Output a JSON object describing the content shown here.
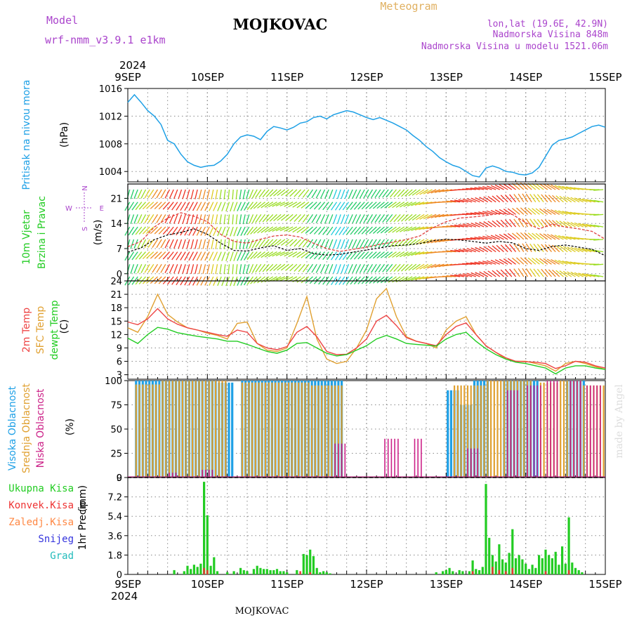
{
  "header": {
    "model_label": "Model",
    "model_name": "wrf-nmm_v3.9.1 e1km",
    "title": "MOJKOVAC",
    "meteogram_label": "Meteogram",
    "lonlat": "lon,lat (19.6E, 42.9N)",
    "altitude": "Nadmorska Visina 848m",
    "model_altitude": "Nadmorska Visina u modelu 1521.06m",
    "credit": "made by Angel",
    "footer": "MOJKOVAC"
  },
  "time_axis": {
    "year": "2024",
    "dates": [
      "9SEP",
      "10SEP",
      "11SEP",
      "12SEP",
      "13SEP",
      "14SEP",
      "15SEP"
    ],
    "range_hours": [
      0,
      144
    ]
  },
  "colors": {
    "pressure": "#1ea0e6",
    "wind_label": "#22cc22",
    "wind_speed": "#000000",
    "wind_gust": "#e04040",
    "temp_2m": "#ee4444",
    "temp_sfc": "#e0a030",
    "dewpoint": "#22cc22",
    "cloud_high": "#1ea0e6",
    "cloud_mid": "#e0a030",
    "cloud_low": "#cc2288",
    "precip": "#22cc22",
    "convective": "#ee3333",
    "freezing": "#ff8844",
    "snow": "#3333dd",
    "hail": "#22bbbb",
    "compass": "#aa44cc",
    "grid": "#888888"
  },
  "chart_data": [
    {
      "type": "line",
      "panel": "pressure",
      "ylabel": "Pritisak na nivou mora",
      "unit": "(hPa)",
      "ylim": [
        1002.5,
        1016
      ],
      "yticks": [
        1004,
        1008,
        1012,
        1016
      ],
      "x_hours": [
        0,
        2,
        4,
        6,
        8,
        10,
        12,
        14,
        16,
        18,
        20,
        22,
        24,
        26,
        28,
        30,
        32,
        34,
        36,
        38,
        40,
        42,
        44,
        46,
        48,
        50,
        52,
        54,
        56,
        58,
        60,
        62,
        64,
        66,
        68,
        70,
        72,
        74,
        76,
        78,
        80,
        82,
        84,
        86,
        88,
        90,
        92,
        94,
        96,
        98,
        100,
        102,
        104,
        106,
        108,
        110,
        112,
        114,
        116,
        118,
        120,
        122,
        124,
        126,
        128,
        130,
        132,
        134,
        136,
        138,
        140,
        142,
        144
      ],
      "values": [
        1014.0,
        1015.1,
        1014.0,
        1012.8,
        1012.0,
        1010.8,
        1008.5,
        1008.0,
        1006.5,
        1005.4,
        1004.9,
        1004.6,
        1004.8,
        1004.9,
        1005.5,
        1006.5,
        1008.0,
        1009.0,
        1009.3,
        1009.1,
        1008.6,
        1009.8,
        1010.5,
        1010.3,
        1010.0,
        1010.4,
        1011.0,
        1011.2,
        1011.8,
        1012.0,
        1011.6,
        1012.2,
        1012.5,
        1012.8,
        1012.6,
        1012.2,
        1011.8,
        1011.5,
        1011.8,
        1011.4,
        1011.0,
        1010.5,
        1010.0,
        1009.2,
        1008.5,
        1007.6,
        1006.9,
        1006.0,
        1005.4,
        1004.9,
        1004.6,
        1004.0,
        1003.4,
        1003.2,
        1004.5,
        1004.8,
        1004.5,
        1004.0,
        1003.9,
        1003.6,
        1003.5,
        1003.8,
        1004.6,
        1006.2,
        1007.8,
        1008.5,
        1008.7,
        1009.0,
        1009.5,
        1010.0,
        1010.5,
        1010.7,
        1010.4
      ]
    },
    {
      "type": "line",
      "panel": "wind",
      "ylabel": "10m Vjetar Brzina i Pravac",
      "unit": "(m/s)",
      "ylim": [
        -2,
        25
      ],
      "yticks": [
        0,
        7,
        14,
        21
      ],
      "compass": {
        "n": "N",
        "s": "S",
        "e": "E",
        "w": "W"
      },
      "x_hours": [
        0,
        4,
        8,
        12,
        16,
        20,
        24,
        28,
        32,
        36,
        40,
        44,
        48,
        52,
        56,
        60,
        64,
        68,
        72,
        76,
        80,
        84,
        88,
        92,
        96,
        100,
        104,
        108,
        112,
        116,
        120,
        124,
        128,
        132,
        136,
        140,
        144
      ],
      "series": [
        {
          "name": "speed",
          "values": [
            6.0,
            7.2,
            9.5,
            10.8,
            11.5,
            12.5,
            11.0,
            8.5,
            6.5,
            6.3,
            7.2,
            7.8,
            6.5,
            7.0,
            5.6,
            5.2,
            5.4,
            6.0,
            6.6,
            7.2,
            7.8,
            8.0,
            8.4,
            9.2,
            9.6,
            9.4,
            9.0,
            8.5,
            9.0,
            8.6,
            7.0,
            6.5,
            7.6,
            8.0,
            7.4,
            6.8,
            5.0
          ]
        },
        {
          "name": "gust",
          "values": [
            7.5,
            9.0,
            13.0,
            15.5,
            17.0,
            16.0,
            14.5,
            11.0,
            9.0,
            8.5,
            9.6,
            10.5,
            10.8,
            10.2,
            8.5,
            7.0,
            6.2,
            6.8,
            7.4,
            8.2,
            8.8,
            9.5,
            10.5,
            12.8,
            14.5,
            15.5,
            15.8,
            16.2,
            16.8,
            16.5,
            14.2,
            12.5,
            13.8,
            13.0,
            12.5,
            11.8,
            9.6
          ]
        }
      ],
      "direction_deg": [
        200,
        210,
        220,
        215,
        205,
        200,
        200,
        195,
        190,
        200,
        220,
        230,
        240,
        230,
        220,
        210,
        205,
        210,
        215,
        220,
        225,
        230,
        240,
        250,
        260,
        270,
        280,
        290,
        300,
        310,
        320,
        315,
        310,
        300,
        290,
        280,
        270
      ],
      "speed_color_scale": [
        "#9933cc",
        "#1e90ff",
        "#22ccdd",
        "#22cc66",
        "#99dd22",
        "#ddcc22",
        "#ee8822",
        "#ee3322"
      ]
    },
    {
      "type": "line",
      "panel": "temperature",
      "ylabel_lines": [
        "2m Temp",
        "SFC Temp",
        "dewpt Temp"
      ],
      "unit": "(C)",
      "ylim": [
        2,
        24
      ],
      "yticks": [
        3,
        6,
        9,
        12,
        15,
        18,
        21,
        24
      ],
      "x_hours": [
        0,
        3,
        6,
        9,
        12,
        15,
        18,
        21,
        24,
        27,
        30,
        33,
        36,
        39,
        42,
        45,
        48,
        51,
        54,
        57,
        60,
        63,
        66,
        69,
        72,
        75,
        78,
        81,
        84,
        87,
        90,
        93,
        96,
        99,
        102,
        105,
        108,
        111,
        114,
        117,
        120,
        123,
        126,
        129,
        132,
        135,
        138,
        141,
        144
      ],
      "series": [
        {
          "name": "2m Temp",
          "values": [
            14.8,
            14.2,
            15.5,
            17.8,
            15.5,
            14.3,
            13.5,
            13.0,
            12.5,
            12.0,
            11.6,
            13.0,
            12.5,
            10.0,
            9.0,
            8.6,
            9.3,
            12.5,
            13.8,
            11.5,
            8.2,
            7.5,
            7.6,
            9.0,
            11.0,
            15.0,
            16.3,
            14.0,
            11.3,
            10.5,
            10.0,
            9.5,
            12.0,
            13.8,
            14.6,
            12.0,
            9.5,
            8.0,
            6.8,
            6.0,
            5.9,
            5.8,
            5.5,
            4.4,
            5.0,
            6.0,
            5.8,
            5.0,
            4.5
          ]
        },
        {
          "name": "SFC Temp",
          "values": [
            13.5,
            12.5,
            16.0,
            21.0,
            16.5,
            14.8,
            13.5,
            13.0,
            12.3,
            11.8,
            11.0,
            14.5,
            14.8,
            10.0,
            8.5,
            8.2,
            9.0,
            14.5,
            20.5,
            11.0,
            6.5,
            5.5,
            6.0,
            9.0,
            13.0,
            20.0,
            22.3,
            16.0,
            11.5,
            10.5,
            10.0,
            9.0,
            13.0,
            15.0,
            16.0,
            12.0,
            9.5,
            8.0,
            6.5,
            6.0,
            6.0,
            5.5,
            5.0,
            3.8,
            5.5,
            6.0,
            5.5,
            4.8,
            4.2
          ]
        },
        {
          "name": "dewpt Temp",
          "values": [
            11.2,
            10.0,
            12.0,
            13.6,
            13.2,
            12.4,
            12.0,
            11.6,
            11.3,
            11.0,
            10.5,
            10.5,
            9.8,
            9.0,
            8.2,
            7.8,
            8.5,
            10.0,
            10.2,
            9.0,
            7.8,
            7.2,
            7.5,
            8.5,
            9.5,
            11.0,
            11.8,
            11.0,
            10.0,
            9.8,
            9.6,
            9.4,
            11.0,
            12.0,
            12.5,
            10.5,
            8.8,
            7.5,
            6.5,
            5.8,
            5.5,
            5.0,
            4.5,
            3.2,
            4.5,
            5.0,
            5.0,
            4.5,
            4.2
          ]
        }
      ]
    },
    {
      "type": "bar",
      "panel": "cloud",
      "ylabel_lines": [
        "Visoka Oblacnost",
        "Srednja Oblacnost",
        "Niska Oblacnost"
      ],
      "unit": "(%)",
      "ylim": [
        0,
        100
      ],
      "yticks": [
        0,
        25,
        50,
        75,
        100
      ],
      "series": [
        {
          "name": "Visoka Oblacnost",
          "segments": [
            [
              2,
              27,
              100
            ],
            [
              27,
              32,
              98
            ],
            [
              34,
              51,
              100
            ],
            [
              51,
              65,
              100
            ],
            [
              96,
              100,
              90
            ],
            [
              100,
              104,
              75
            ],
            [
              104,
              109,
              100
            ],
            [
              113,
              118,
              100
            ],
            [
              118,
              124,
              100
            ],
            [
              132,
              138,
              100
            ]
          ]
        },
        {
          "name": "Srednja Oblacnost",
          "segments": [
            [
              2,
              10,
              96
            ],
            [
              10,
              30,
              100
            ],
            [
              34,
              55,
              98
            ],
            [
              55,
              65,
              95
            ],
            [
              98,
              108,
              95
            ],
            [
              108,
              116,
              100
            ],
            [
              116,
              122,
              100
            ],
            [
              124,
              130,
              98
            ],
            [
              130,
              137,
              100
            ],
            [
              137,
              144,
              95
            ]
          ]
        },
        {
          "name": "Niska Oblacnost",
          "segments": [
            [
              12,
              15,
              5
            ],
            [
              22,
              26,
              8
            ],
            [
              62,
              66,
              35
            ],
            [
              77,
              82,
              40
            ],
            [
              86,
              89,
              40
            ],
            [
              102,
              106,
              30
            ],
            [
              114,
              118,
              90
            ],
            [
              120,
              125,
              95
            ],
            [
              126,
              130,
              100
            ],
            [
              133,
              137,
              100
            ],
            [
              138,
              143,
              95
            ]
          ]
        }
      ]
    },
    {
      "type": "bar",
      "panel": "precip",
      "ylabel": "1hr Precip",
      "unit": "(mm)",
      "ylim": [
        0,
        9
      ],
      "yticks": [
        0,
        1.8,
        3.6,
        5.4,
        7.2,
        9
      ],
      "legend": [
        "Ukupna Kisa",
        "Konvek.Kisa",
        "Zaledj.Kisa",
        "Snijeg",
        "Grad"
      ],
      "series": [
        {
          "name": "Ukupna Kisa",
          "hours": [
            14,
            17,
            18,
            19,
            20,
            21,
            22,
            23,
            24,
            25,
            26,
            27,
            30,
            32,
            34,
            35,
            36,
            38,
            39,
            40,
            41,
            42,
            43,
            44,
            45,
            46,
            47,
            48,
            51,
            53,
            54,
            55,
            56,
            57,
            58,
            59,
            60,
            61,
            93,
            95,
            96,
            97,
            98,
            100,
            101,
            103,
            104,
            105,
            106,
            107,
            108,
            109,
            110,
            111,
            112,
            113,
            114,
            115,
            116,
            117,
            118,
            119,
            120,
            121,
            122,
            123,
            124,
            125,
            126,
            127,
            128,
            129,
            130,
            131,
            132,
            133,
            134,
            135,
            136,
            137
          ],
          "values": [
            0.4,
            0.3,
            0.8,
            0.5,
            0.9,
            0.7,
            1.0,
            8.6,
            5.5,
            0.8,
            1.6,
            0.3,
            0.2,
            0.3,
            0.6,
            0.4,
            0.3,
            0.5,
            0.8,
            0.6,
            0.5,
            0.5,
            0.4,
            0.4,
            0.5,
            0.3,
            0.3,
            0.2,
            0.4,
            1.9,
            1.8,
            2.3,
            1.7,
            0.6,
            0.2,
            0.3,
            0.2,
            0.1,
            0.2,
            0.3,
            0.4,
            0.6,
            0.3,
            0.4,
            0.3,
            0.3,
            1.3,
            0.5,
            0.4,
            0.7,
            8.4,
            3.4,
            1.8,
            1.2,
            2.8,
            1.4,
            1.1,
            2.0,
            4.2,
            1.5,
            1.8,
            1.4,
            1.0,
            0.5,
            0.9,
            0.6,
            1.8,
            1.5,
            2.3,
            1.8,
            1.5,
            2.1,
            0.9,
            2.6,
            1.0,
            5.3,
            1.1,
            0.6,
            0.4,
            0.2
          ]
        },
        {
          "name": "Konvek.Kisa",
          "hours": [
            23,
            24,
            52,
            55,
            104,
            110,
            112,
            114,
            116,
            126,
            133
          ],
          "values": [
            0.6,
            0.4,
            0.3,
            0.2,
            0.3,
            0.7,
            0.4,
            0.3,
            0.6,
            0.3,
            0.4
          ]
        }
      ]
    }
  ]
}
